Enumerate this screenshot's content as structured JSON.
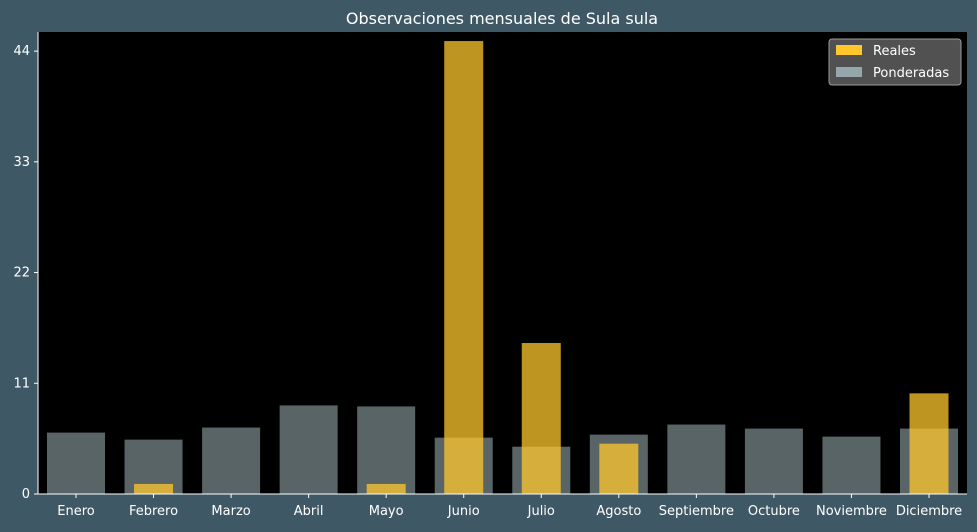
{
  "colors": {
    "page_background": "#3f5866",
    "plot_background": "#000000",
    "text": "#ffffff",
    "reales": "#ffc72c",
    "ponderadas": "#94a7ab",
    "legend_background": "#555555"
  },
  "chart_data": {
    "type": "bar",
    "title": "Observaciones mensuales de Sula sula",
    "xlabel": "",
    "ylabel": "",
    "ylim": [
      0,
      45.9
    ],
    "yticks": [
      0,
      11,
      22,
      33,
      44
    ],
    "grid": false,
    "legend_position": "top-right",
    "categories": [
      "Enero",
      "Febrero",
      "Marzo",
      "Abril",
      "Mayo",
      "Junio",
      "Julio",
      "Agosto",
      "Septiembre",
      "Octubre",
      "Noviembre",
      "Diciembre"
    ],
    "series": [
      {
        "name": "Reales",
        "values": [
          0,
          1,
          0,
          0,
          1,
          45,
          15,
          5,
          0,
          0,
          0,
          10
        ]
      },
      {
        "name": "Ponderadas",
        "values": [
          6.1,
          5.4,
          6.6,
          8.8,
          8.7,
          5.6,
          4.7,
          5.9,
          6.9,
          6.5,
          5.7,
          6.5
        ]
      }
    ]
  }
}
